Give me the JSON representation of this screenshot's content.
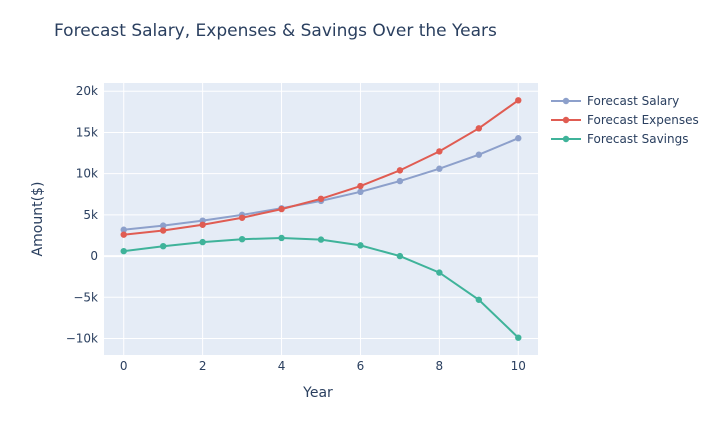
{
  "chart_data": {
    "type": "line",
    "title": "Forecast Salary, Expenses & Savings Over the Years",
    "xlabel": "Year",
    "ylabel": "Amount($)",
    "x": [
      0,
      1,
      2,
      3,
      4,
      5,
      6,
      7,
      8,
      9,
      10
    ],
    "xlim": [
      -0.5,
      10.5
    ],
    "ylim": [
      -12000,
      21000
    ],
    "xticks": [
      0,
      2,
      4,
      6,
      8,
      10
    ],
    "yticks": [
      -10000,
      -5000,
      0,
      5000,
      10000,
      15000,
      20000
    ],
    "ytick_labels": [
      "−10k",
      "−5k",
      "0",
      "5k",
      "10k",
      "15k",
      "20k"
    ],
    "legend_position": "top-right",
    "grid": true,
    "series": [
      {
        "name": "Forecast Salary",
        "color": "#8da0cb",
        "values": [
          3200,
          3700,
          4300,
          5000,
          5800,
          6700,
          7800,
          9100,
          10600,
          12300,
          14300
        ]
      },
      {
        "name": "Forecast Expenses",
        "color": "#e05c52",
        "values": [
          2600,
          3100,
          3800,
          4650,
          5700,
          6950,
          8500,
          10400,
          12700,
          15500,
          18900
        ]
      },
      {
        "name": "Forecast Savings",
        "color": "#3fb39a",
        "values": [
          600,
          1200,
          1700,
          2050,
          2200,
          2000,
          1300,
          0,
          -2000,
          -5300,
          -9900
        ]
      }
    ]
  }
}
